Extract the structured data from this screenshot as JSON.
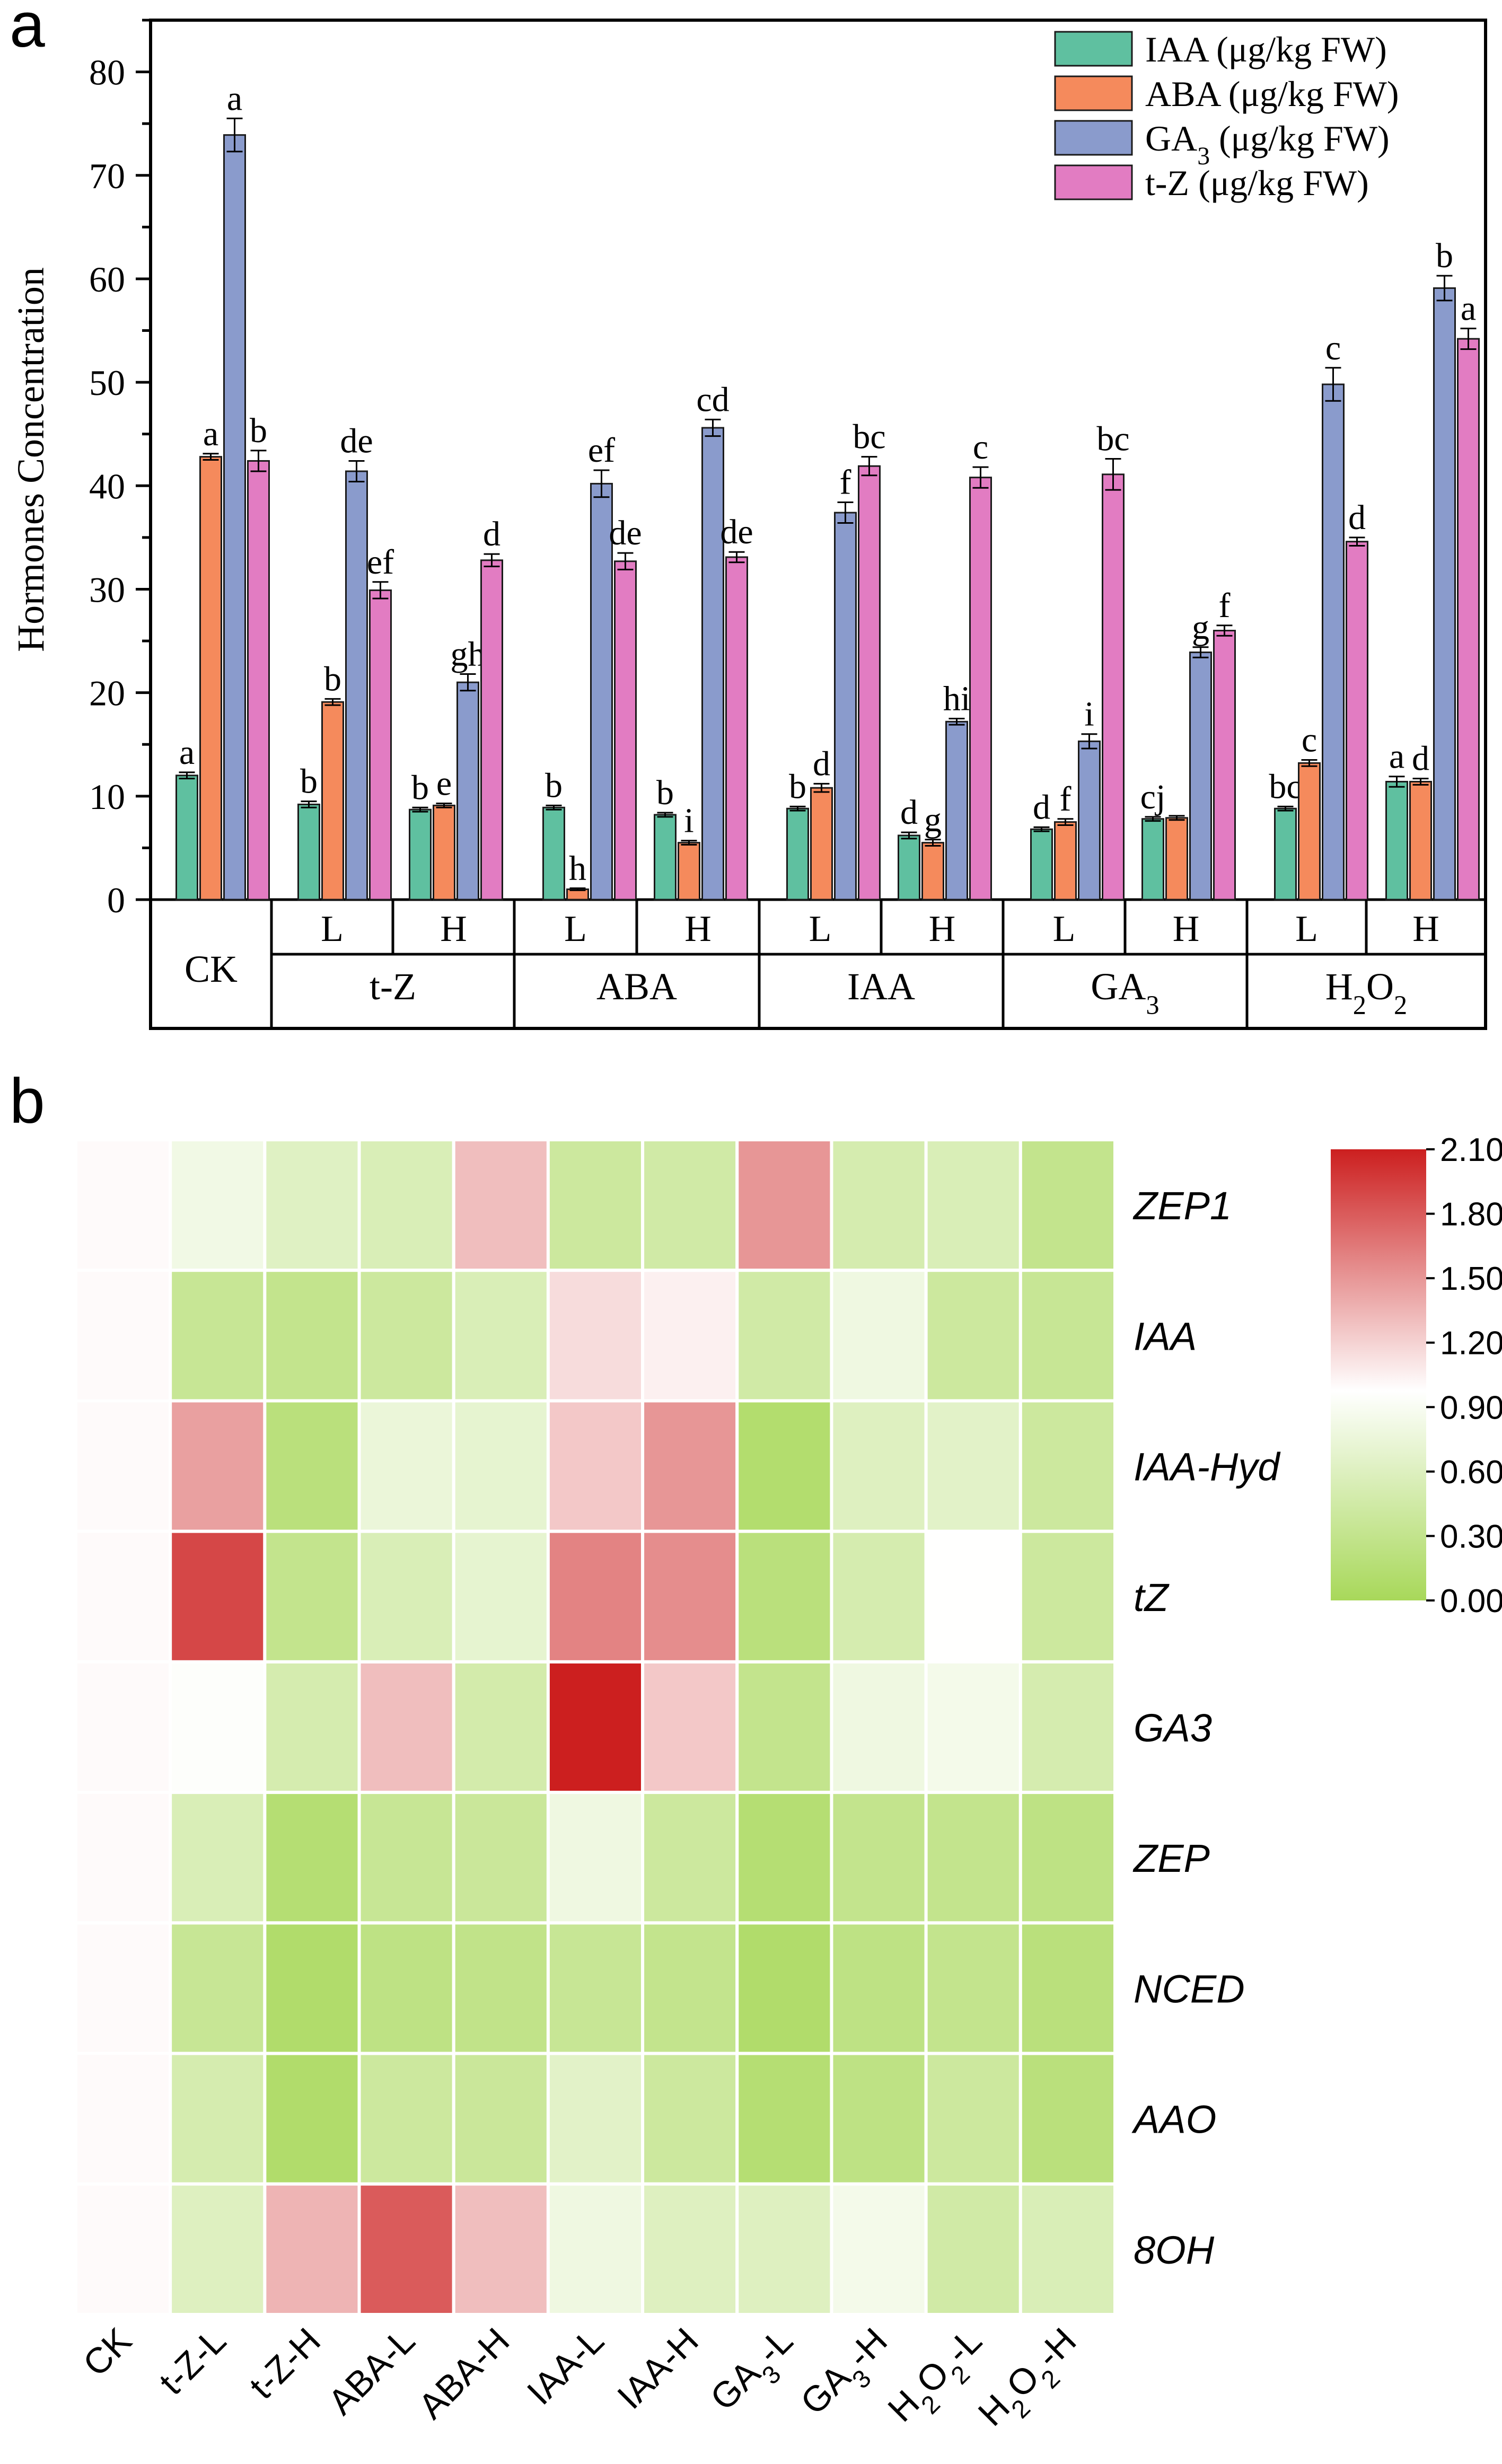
{
  "panel_labels": {
    "a": "a",
    "b": "b"
  },
  "colors": {
    "IAA": "#5fc0a0",
    "ABA": "#f58a5c",
    "GA3": "#8a9bcc",
    "t-Z": "#e27cc2",
    "heat_low": "#a8d85a",
    "heat_mid": "#ffffff",
    "heat_high": "#cc1f1f"
  },
  "chart_data": [
    {
      "type": "bar",
      "panel": "a",
      "ylabel": "Hormones Concentration",
      "ylim": [
        0,
        85
      ],
      "yticks": [
        0,
        10,
        20,
        30,
        40,
        50,
        60,
        70,
        80
      ],
      "legend_position": "top-right",
      "categories": [
        "CK",
        "t-Z-L",
        "t-Z-H",
        "ABA-L",
        "ABA-H",
        "IAA-L",
        "IAA-H",
        "GA3-L",
        "GA3-H",
        "H2O2-L",
        "H2O2-H"
      ],
      "axis_groups": [
        {
          "label": "CK",
          "sublabels": []
        },
        {
          "label": "t-Z",
          "sublabels": [
            "L",
            "H"
          ]
        },
        {
          "label": "ABA",
          "sublabels": [
            "L",
            "H"
          ]
        },
        {
          "label": "IAA",
          "sublabels": [
            "L",
            "H"
          ]
        },
        {
          "label": "GA",
          "sub": "3",
          "sublabels": [
            "L",
            "H"
          ]
        },
        {
          "label": "H",
          "sub": "2",
          "label2": "O",
          "sub2": "2",
          "sublabels": [
            "L",
            "H"
          ]
        }
      ],
      "series": [
        {
          "name": "IAA (μg/kg FW)",
          "legend_base": "IAA",
          "legend_rest": " (μg/kg FW)",
          "color_key": "IAA",
          "values": [
            12.0,
            9.2,
            8.7,
            8.9,
            8.2,
            8.8,
            6.2,
            6.8,
            7.8,
            8.8,
            11.4
          ],
          "errors": [
            0.3,
            0.3,
            0.2,
            0.2,
            0.2,
            0.2,
            0.3,
            0.2,
            0.2,
            0.2,
            0.5
          ],
          "letters": [
            "a",
            "b",
            "b",
            "b",
            "b",
            "b",
            "d",
            "d",
            "cj",
            "bc",
            "a"
          ]
        },
        {
          "name": "ABA (μg/kg FW)",
          "legend_base": "ABA",
          "legend_rest": " (μg/kg FW)",
          "color_key": "ABA",
          "values": [
            42.8,
            19.1,
            9.1,
            1.0,
            5.5,
            10.8,
            5.5,
            7.5,
            7.9,
            13.2,
            11.4
          ],
          "errors": [
            0.3,
            0.3,
            0.2,
            0.1,
            0.2,
            0.4,
            0.3,
            0.3,
            0.2,
            0.3,
            0.3
          ],
          "letters": [
            "a",
            "b",
            "e",
            "h",
            "i",
            "d",
            "g",
            "f",
            "",
            "c",
            "d"
          ]
        },
        {
          "name": "GA3 (μg/kg FW)",
          "legend_base": "GA",
          "legend_sub": "3",
          "legend_rest": " (μg/kg FW)",
          "color_key": "GA3",
          "values": [
            73.9,
            41.4,
            21.0,
            40.2,
            45.6,
            37.4,
            17.2,
            15.3,
            23.9,
            49.8,
            59.1
          ],
          "errors": [
            1.6,
            1.0,
            0.8,
            1.3,
            0.8,
            1.0,
            0.3,
            0.7,
            0.5,
            1.6,
            1.2
          ],
          "letters": [
            "a",
            "de",
            "gh",
            "ef",
            "cd",
            "f",
            "hi",
            "i",
            "g",
            "c",
            "b"
          ]
        },
        {
          "name": "t-Z (μg/kg FW)",
          "legend_base": "t-Z",
          "legend_rest": " (μg/kg FW)",
          "color_key": "t-Z",
          "values": [
            42.4,
            29.9,
            32.8,
            32.7,
            33.1,
            41.9,
            40.8,
            41.1,
            26.0,
            34.6,
            54.2
          ],
          "errors": [
            1.0,
            0.8,
            0.6,
            0.8,
            0.5,
            0.9,
            1.0,
            1.5,
            0.5,
            0.4,
            1.0
          ],
          "letters": [
            "b",
            "ef",
            "d",
            "de",
            "de",
            "bc",
            "c",
            "bc",
            "f",
            "d",
            "a"
          ]
        }
      ]
    },
    {
      "type": "heatmap",
      "panel": "b",
      "rows": [
        "ZEP1",
        "IAA",
        "IAA-Hyd",
        "tZ",
        "GA3",
        "ZEP",
        "NCED",
        "AAO",
        "8OH"
      ],
      "columns": [
        {
          "label": "CK"
        },
        {
          "label": "t-Z-L"
        },
        {
          "label": "t-Z-H"
        },
        {
          "label": "ABA-L"
        },
        {
          "label": "ABA-H"
        },
        {
          "label": "IAA-L"
        },
        {
          "label": "IAA-H"
        },
        {
          "label": "GA",
          "sub": "3",
          "tail": "-L"
        },
        {
          "label": "GA",
          "sub": "3",
          "tail": "-H"
        },
        {
          "label": "H",
          "sub": "2",
          "mid": "O",
          "sub2": "2",
          "tail": "-L"
        },
        {
          "label": "H",
          "sub": "2",
          "mid": "O",
          "sub2": "2",
          "tail": "-H"
        }
      ],
      "values": [
        [
          1.0,
          0.82,
          0.62,
          0.55,
          1.3,
          0.4,
          0.45,
          1.5,
          0.5,
          0.55,
          0.3
        ],
        [
          1.0,
          0.35,
          0.3,
          0.4,
          0.55,
          1.15,
          1.05,
          0.45,
          0.8,
          0.4,
          0.35
        ],
        [
          1.0,
          1.45,
          0.2,
          0.75,
          0.7,
          1.25,
          1.5,
          0.12,
          0.6,
          0.65,
          0.4
        ],
        [
          1.0,
          1.9,
          0.3,
          0.55,
          0.7,
          1.6,
          1.55,
          0.2,
          0.5,
          0.97,
          0.4
        ],
        [
          1.0,
          0.95,
          0.5,
          1.3,
          0.48,
          2.1,
          1.25,
          0.3,
          0.8,
          0.85,
          0.5
        ],
        [
          1.0,
          0.55,
          0.15,
          0.35,
          0.38,
          0.8,
          0.4,
          0.15,
          0.3,
          0.3,
          0.25
        ],
        [
          1.0,
          0.35,
          0.1,
          0.25,
          0.28,
          0.35,
          0.3,
          0.1,
          0.25,
          0.3,
          0.2
        ],
        [
          1.0,
          0.5,
          0.1,
          0.4,
          0.38,
          0.65,
          0.4,
          0.15,
          0.25,
          0.4,
          0.2
        ],
        [
          1.0,
          0.6,
          1.35,
          1.8,
          1.3,
          0.8,
          0.6,
          0.6,
          0.85,
          0.45,
          0.55
        ]
      ],
      "colorbar": {
        "min": 0.0,
        "max": 2.1,
        "tick_labels": [
          "2.10",
          "1.80",
          "1.50",
          "1.20",
          "0.90",
          "0.60",
          "0.30",
          "0.00"
        ]
      }
    }
  ]
}
